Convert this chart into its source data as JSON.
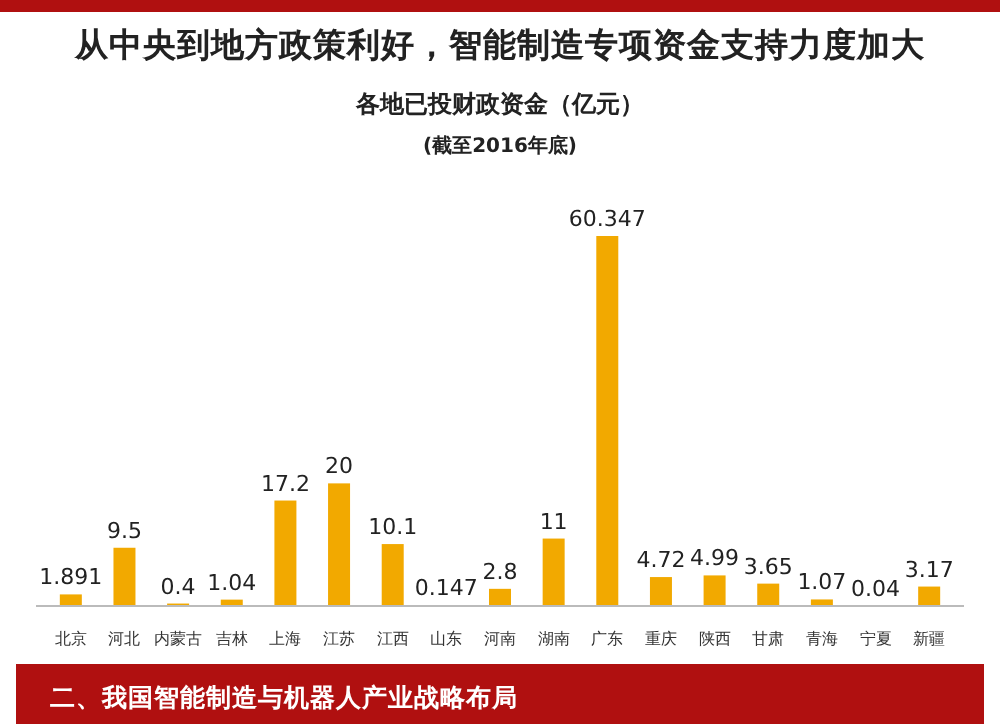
{
  "chart_data": {
    "type": "bar",
    "title": "从中央到地方政策利好，智能制造专项资金支持力度加大",
    "subtitle": "各地已投财政资金（亿元）",
    "annotations": [
      "(截至2016年底)",
      "二、我国智能制造与机器人产业战略布局"
    ],
    "categories": [
      "北京",
      "河北",
      "内蒙古",
      "吉林",
      "上海",
      "江苏",
      "江西",
      "山东",
      "河南",
      "湖南",
      "广东",
      "重庆",
      "陕西",
      "甘肃",
      "青海",
      "宁夏",
      "新疆"
    ],
    "values": [
      1.891,
      9.5,
      0.4,
      1.04,
      17.2,
      20,
      10.1,
      0.147,
      2.8,
      11,
      60.347,
      4.72,
      4.99,
      3.65,
      1.07,
      0.04,
      3.17
    ],
    "color": "#f2a900",
    "data_labels": true
  }
}
